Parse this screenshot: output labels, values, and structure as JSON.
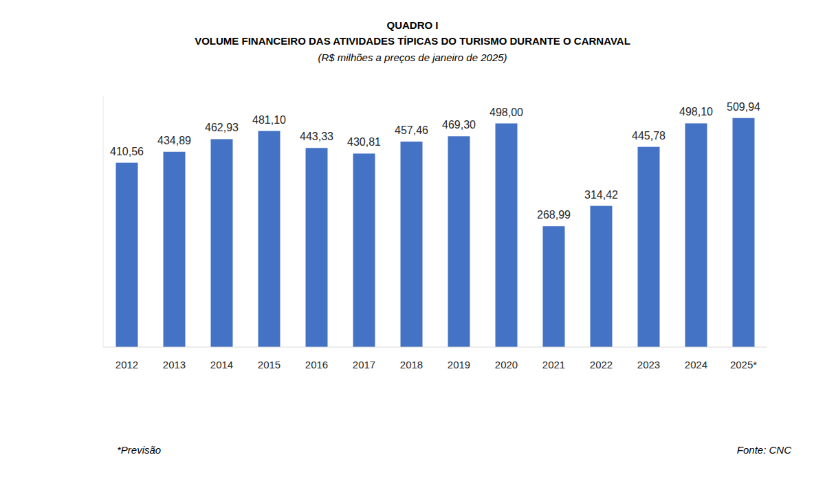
{
  "chart_data": {
    "type": "bar",
    "heading": "QUADRO I",
    "title": "VOLUME FINANCEIRO DAS ATIVIDADES TÍPICAS DO TURISMO DURANTE O CARNAVAL",
    "subtitle": "(R$ milhões a preços de janeiro de 2025)",
    "note": "*Previsão",
    "source": "Fonte: CNC",
    "categories": [
      "2012",
      "2013",
      "2014",
      "2015",
      "2016",
      "2017",
      "2018",
      "2019",
      "2020",
      "2021",
      "2022",
      "2023",
      "2024",
      "2025*"
    ],
    "values": [
      410.56,
      434.89,
      462.93,
      481.1,
      443.33,
      430.81,
      457.46,
      469.3,
      498.0,
      268.99,
      314.42,
      445.78,
      498.1,
      509.94
    ],
    "value_labels": [
      "410,56",
      "434,89",
      "462,93",
      "481,10",
      "443,33",
      "430,81",
      "457,46",
      "469,30",
      "498,00",
      "268,99",
      "314,42",
      "445,78",
      "498,10",
      "509,94"
    ],
    "color": "#4472c4",
    "ylim": [
      0,
      560
    ],
    "yticks": [],
    "grid": false,
    "data_labels": true,
    "tick_labels": "x"
  }
}
